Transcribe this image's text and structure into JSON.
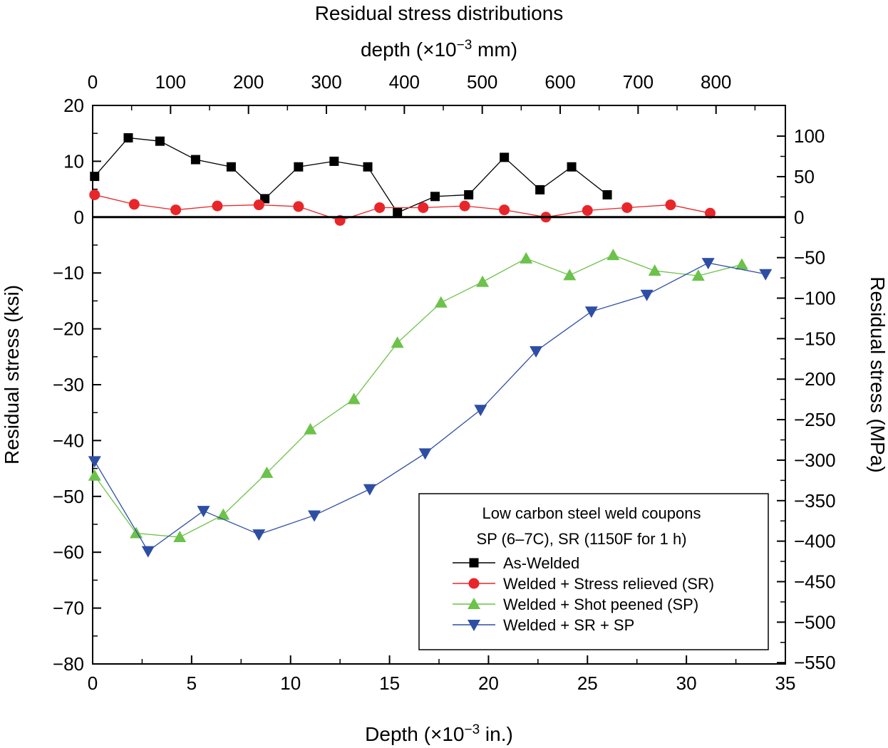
{
  "chart_data": {
    "type": "line",
    "title": "Residual stress distributions",
    "top_axis_label": "depth (×10",
    "top_axis_label_exp": "−3",
    "top_axis_label_unit": " mm)",
    "top_ticks": [
      "0",
      "100",
      "200",
      "300",
      "400",
      "500",
      "600",
      "700",
      "800"
    ],
    "xlabel": "Depth (×10",
    "xlabel_exp": "−3",
    "xlabel_unit": " in.)",
    "xlim": [
      0,
      35
    ],
    "x_ticks": [
      "0",
      "5",
      "10",
      "15",
      "20",
      "25",
      "30",
      "35"
    ],
    "ylabel": "Residual stress (ksi)",
    "ylim": [
      -80,
      20
    ],
    "y_ticks": [
      "20",
      "10",
      "0",
      "−10",
      "−20",
      "−30",
      "−40",
      "−50",
      "−60",
      "−70",
      "−80"
    ],
    "y2label": "Residual stress (MPa)",
    "y2_ticks": [
      "100",
      "50",
      "0",
      "−50",
      "−100",
      "−150",
      "−200",
      "−250",
      "−300",
      "−350",
      "−400",
      "−450",
      "−500",
      "−550"
    ],
    "legend": {
      "title": "Low carbon steel weld coupons",
      "subtitle": "SP (6–7C), SR (1150F for 1 h)",
      "placement": "bottom-right"
    },
    "series": [
      {
        "name": "As-Welded",
        "color": "#000000",
        "marker": "square",
        "x": [
          0.1,
          1.8,
          3.4,
          5.2,
          7.0,
          8.7,
          10.4,
          12.2,
          13.9,
          15.4,
          17.3,
          19.0,
          20.8,
          22.6,
          24.2,
          26.0
        ],
        "y": [
          7.3,
          14.2,
          13.6,
          10.3,
          9.0,
          3.3,
          9.0,
          10.0,
          9.0,
          0.8,
          3.7,
          4.0,
          10.7,
          4.9,
          9.0,
          4.0
        ]
      },
      {
        "name": "Welded + Stress relieved (SR)",
        "color": "#e8262a",
        "marker": "circle",
        "x": [
          0.1,
          2.1,
          4.2,
          6.3,
          8.4,
          10.4,
          12.5,
          14.5,
          16.7,
          18.8,
          20.8,
          22.9,
          25.0,
          27.0,
          29.2,
          31.2
        ],
        "y": [
          4.0,
          2.3,
          1.3,
          2.0,
          2.2,
          1.9,
          -0.6,
          1.7,
          1.7,
          2.0,
          1.3,
          0.0,
          1.2,
          1.7,
          2.2,
          0.7
        ]
      },
      {
        "name": "Welded + Shot peened (SP)",
        "color": "#6cc24a",
        "marker": "triangle-up",
        "x": [
          0.1,
          2.2,
          4.4,
          6.6,
          8.8,
          11.0,
          13.2,
          15.4,
          17.6,
          19.7,
          21.9,
          24.1,
          26.3,
          28.4,
          30.6,
          32.8
        ],
        "y": [
          -46.3,
          -56.6,
          -57.3,
          -53.3,
          -45.8,
          -38.0,
          -32.6,
          -22.5,
          -15.3,
          -11.6,
          -7.4,
          -10.4,
          -6.8,
          -9.6,
          -10.5,
          -8.5
        ]
      },
      {
        "name": "Welded + SR + SP",
        "color": "#2e4ea3",
        "marker": "triangle-down",
        "x": [
          0.1,
          2.8,
          5.6,
          8.4,
          11.2,
          14.0,
          16.8,
          19.6,
          22.4,
          25.2,
          28.0,
          31.1,
          34.0
        ],
        "y": [
          -43.7,
          -59.8,
          -52.6,
          -56.8,
          -53.4,
          -48.7,
          -42.3,
          -34.5,
          -24.0,
          -16.9,
          -13.9,
          -8.2,
          -10.2
        ]
      }
    ]
  }
}
